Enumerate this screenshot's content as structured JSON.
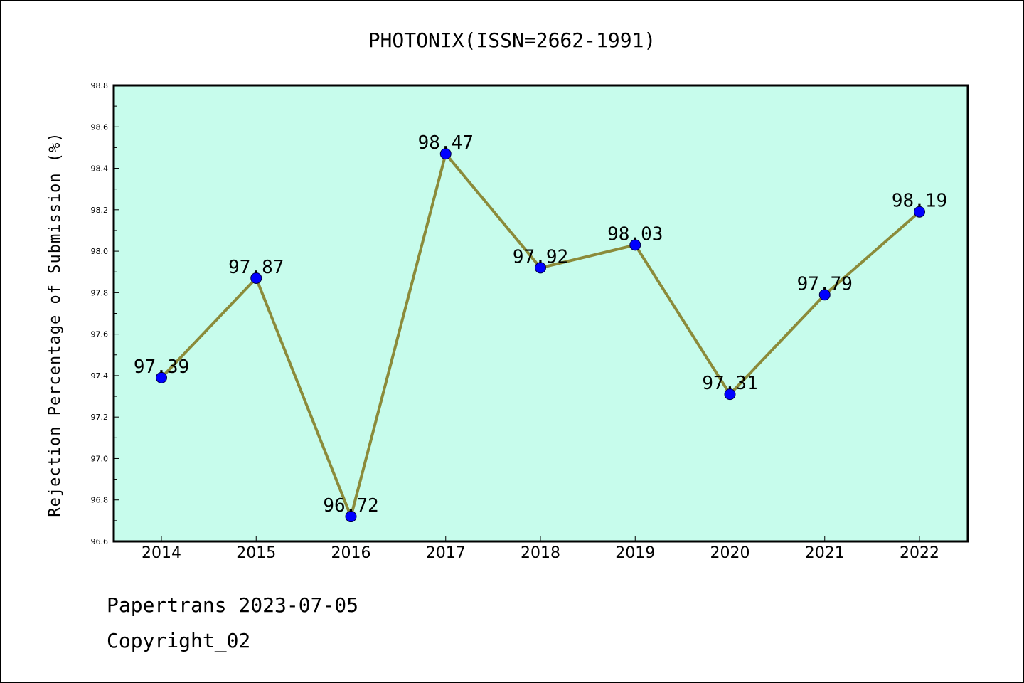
{
  "chart_data": {
    "type": "line",
    "title": "PHOTONIX(ISSN=2662-1991)",
    "ylabel": "Rejection Percentage of Submission (%)",
    "xlabel": "",
    "categories": [
      "2014",
      "2015",
      "2016",
      "2017",
      "2018",
      "2019",
      "2020",
      "2021",
      "2022"
    ],
    "series": [
      {
        "values": [
          97.39,
          97.87,
          96.72,
          98.47,
          97.92,
          98.03,
          97.31,
          97.79,
          98.19
        ]
      }
    ],
    "data_labels": [
      "97.39",
      "97.87",
      "96.72",
      "98.47",
      "97.92",
      "98.03",
      "97.31",
      "97.79",
      "98.19"
    ],
    "ylim": [
      96.6,
      98.8
    ],
    "yticks": [
      "96.6",
      "96.8",
      "97.0",
      "97.2",
      "97.4",
      "97.6",
      "97.8",
      "98.0",
      "98.2",
      "98.4",
      "98.6",
      "98.8"
    ],
    "grid": false,
    "colors": {
      "plot_background": "#c7fcec",
      "line": "#8b8b3a",
      "marker": "#0000ff"
    }
  },
  "footer": {
    "line1": "Papertrans 2023-07-05",
    "line2": "Copyright_02"
  }
}
